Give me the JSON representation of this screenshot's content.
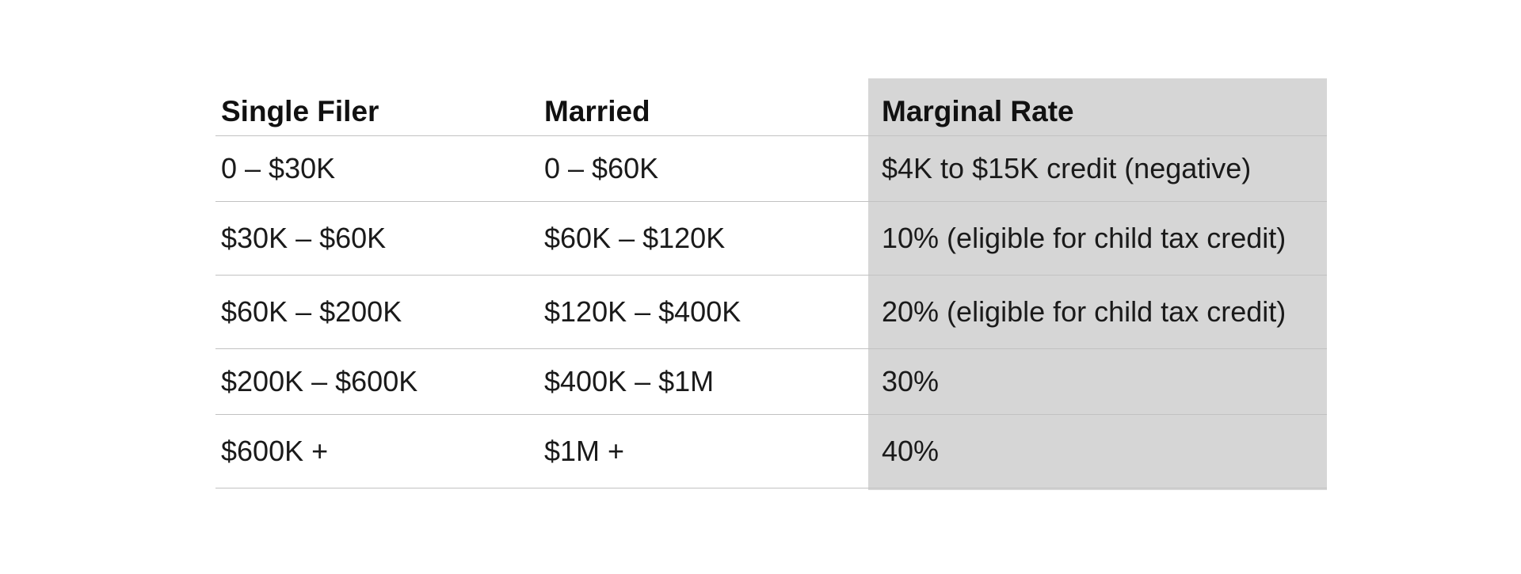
{
  "table": {
    "headers": [
      "Single Filer",
      "Married",
      "Marginal Rate"
    ],
    "rows": [
      [
        "0 – $30K",
        "0 – $60K",
        "$4K to $15K credit (negative)"
      ],
      [
        "$30K – $60K",
        "$60K – $120K",
        "10% (eligible for child tax credit)"
      ],
      [
        "$60K – $200K",
        "$120K – $400K",
        "20% (eligible for child tax credit)"
      ],
      [
        "$200K – $600K",
        "$400K – $1M",
        "30%"
      ],
      [
        "$600K +",
        "$1M +",
        "40%"
      ]
    ],
    "highlight_column_color": "#d6d6d6"
  }
}
